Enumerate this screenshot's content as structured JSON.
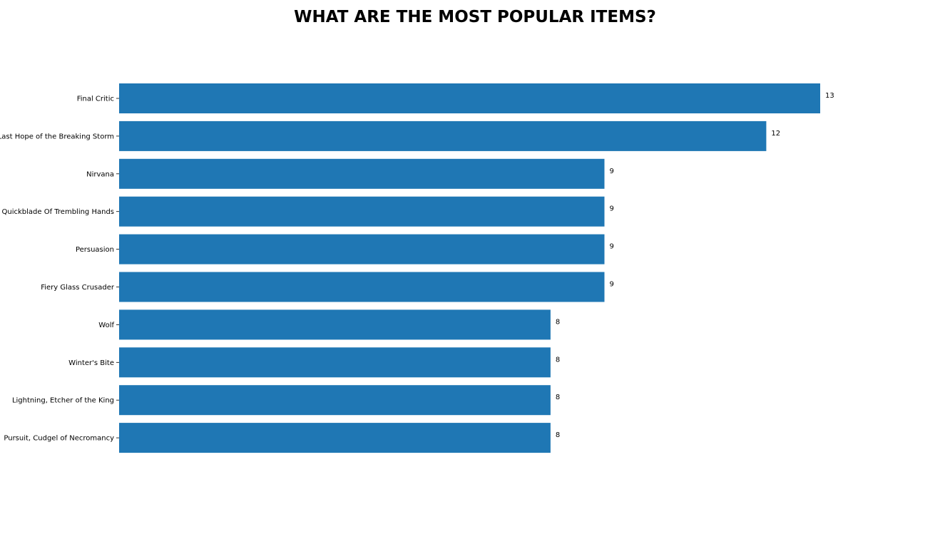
{
  "chart_data": {
    "type": "bar",
    "orientation": "horizontal",
    "title": "WHAT ARE THE MOST POPULAR ITEMS?",
    "xlabel": "",
    "ylabel": "",
    "xlim": [
      0,
      13
    ],
    "grid": false,
    "bar_color": "#1f77b4",
    "categories": [
      "Final Critic",
      "Last Hope of the Breaking Storm",
      "Nirvana",
      "Quickblade Of Trembling Hands",
      "Persuasion",
      "Fiery Glass Crusader",
      "Wolf",
      "Winter's Bite",
      "Lightning, Etcher of the King",
      "Pursuit, Cudgel of Necromancy"
    ],
    "values": [
      13,
      12,
      9,
      9,
      9,
      9,
      8,
      8,
      8,
      8
    ]
  }
}
